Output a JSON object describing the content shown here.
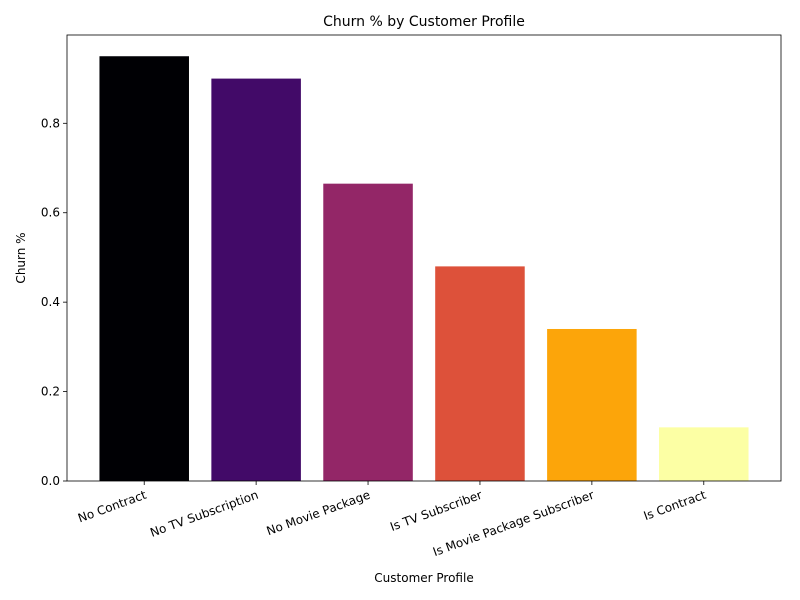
{
  "chart_data": {
    "type": "bar",
    "title": "Churn % by Customer Profile",
    "x_label": "Customer Profile",
    "y_label": "Churn %",
    "categories": [
      "No Contract",
      "No TV Subscription",
      "No Movie Package",
      "Is TV Subscriber",
      "Is Movie Package Subscriber",
      "Is Contract"
    ],
    "values": [
      0.95,
      0.9,
      0.665,
      0.48,
      0.34,
      0.12
    ],
    "colors": [
      "#000004",
      "#420a68",
      "#932667",
      "#dd513a",
      "#fca50a",
      "#fcffa4"
    ],
    "ylim": [
      0,
      0.9975
    ],
    "yticks": [
      {
        "value": 0,
        "label": "0.0"
      },
      0.2,
      0.4,
      0.6,
      0.8
    ],
    "grid": false
  }
}
